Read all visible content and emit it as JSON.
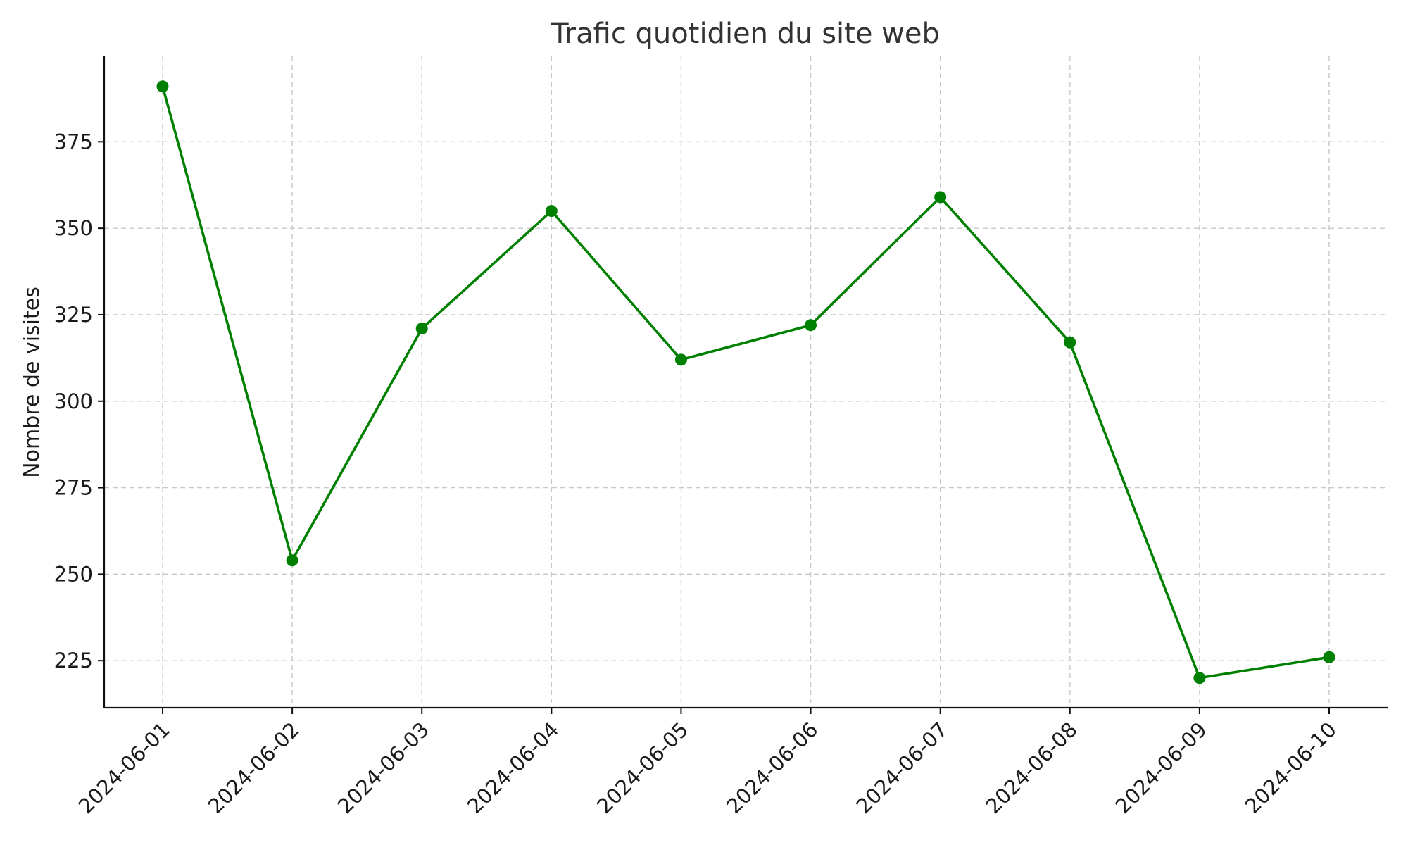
{
  "chart_data": {
    "type": "line",
    "title": "Trafic quotidien du site web",
    "xlabel": "",
    "ylabel": "Nombre de visites",
    "categories": [
      "2024-06-01",
      "2024-06-02",
      "2024-06-03",
      "2024-06-04",
      "2024-06-05",
      "2024-06-06",
      "2024-06-07",
      "2024-06-08",
      "2024-06-09",
      "2024-06-10"
    ],
    "series": [
      {
        "values": [
          391,
          254,
          321,
          355,
          312,
          322,
          359,
          317,
          220,
          226
        ]
      }
    ],
    "yticks": [
      225,
      250,
      275,
      300,
      325,
      350,
      375
    ],
    "ylim": [
      211.4,
      399.7
    ],
    "grid": true,
    "legend": "none",
    "x_tick_rotation_deg": 45,
    "marker": "circle",
    "colors": {
      "series": "#008000",
      "grid": "#c8c8c8",
      "axis": "#111111",
      "title": "#333333"
    }
  }
}
